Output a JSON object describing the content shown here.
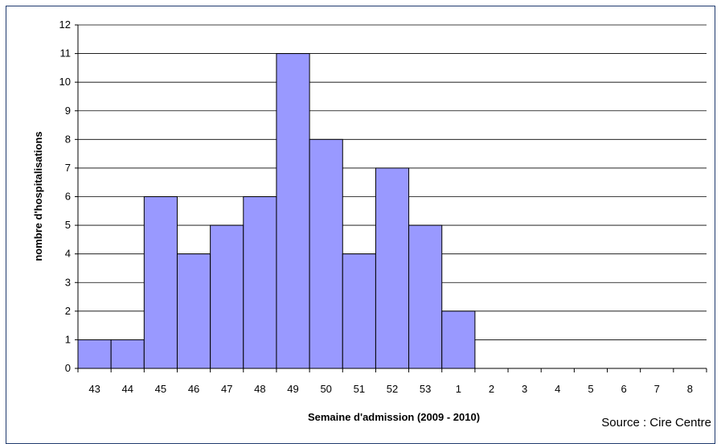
{
  "chart_data": {
    "type": "bar",
    "categories": [
      "43",
      "44",
      "45",
      "46",
      "47",
      "48",
      "49",
      "50",
      "51",
      "52",
      "53",
      "1",
      "2",
      "3",
      "4",
      "5",
      "6",
      "7",
      "8"
    ],
    "values": [
      1,
      1,
      6,
      4,
      5,
      6,
      11,
      8,
      4,
      7,
      5,
      2,
      0,
      0,
      0,
      0,
      0,
      0,
      0
    ],
    "title": "",
    "xlabel": "Semaine d'admission (2009 - 2010)",
    "ylabel": "nombre d'hospitalisations",
    "ylim": [
      0,
      12
    ],
    "yticks": [
      0,
      1,
      2,
      3,
      4,
      5,
      6,
      7,
      8,
      9,
      10,
      11,
      12
    ],
    "grid": true,
    "legend": "none",
    "bar_color": "#9999ff",
    "source": "Source : Cire Centre"
  }
}
